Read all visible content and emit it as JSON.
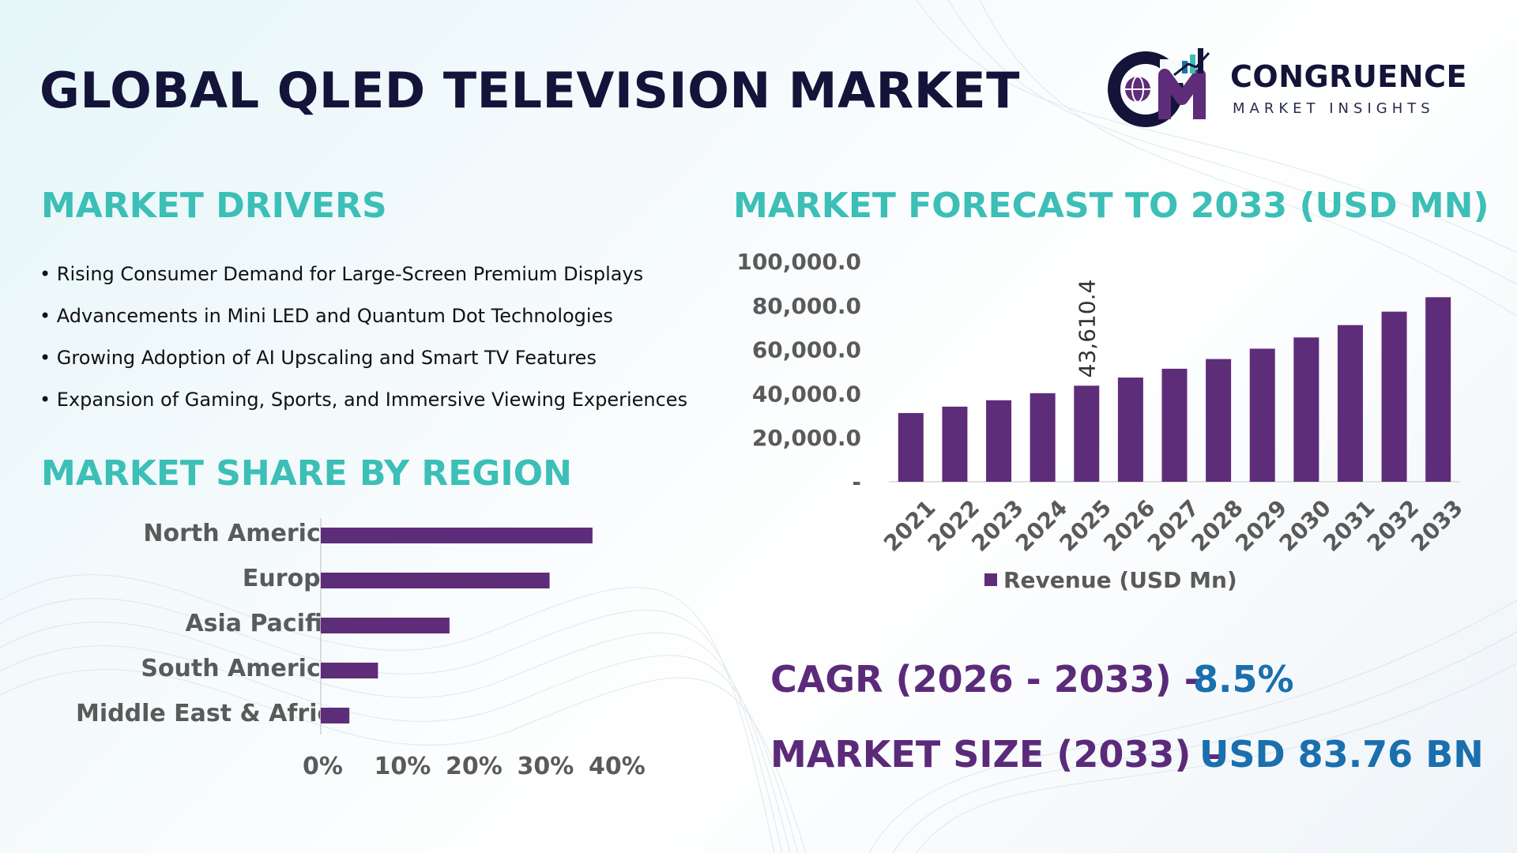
{
  "title": "GLOBAL QLED TELEVISION MARKET",
  "logo": {
    "name": "CONGRUENCE",
    "tagline": "MARKET INSIGHTS",
    "icon": "cm-globe-logo-icon"
  },
  "drivers": {
    "heading": "MARKET DRIVERS",
    "items": [
      "Rising Consumer Demand for Large-Screen Premium Displays",
      "Advancements in Mini LED and Quantum Dot Technologies",
      "Growing Adoption of AI Upscaling and Smart TV Features",
      "Expansion of Gaming, Sports, and Immersive Viewing Experiences"
    ]
  },
  "region": {
    "heading": "MARKET SHARE BY REGION"
  },
  "forecast": {
    "heading": "MARKET FORECAST TO 2033 (USD MN)"
  },
  "stats": {
    "cagr_label": "CAGR (2026 - 2033) -",
    "cagr_value": "8.5%",
    "size_label": "MARKET SIZE (2033) –",
    "size_value": "USD 83.76 BN"
  },
  "colors": {
    "bar": "#5e2d79",
    "heading": "#3bbfb6",
    "title": "#14143a",
    "stat_label": "#5b2a7a",
    "stat_value": "#1a6fae"
  },
  "chart_data": [
    {
      "type": "bar",
      "orientation": "horizontal",
      "categories": [
        "North America",
        "Europe",
        "Asia Pacific",
        "South America",
        "Middle East & Africa"
      ],
      "values": [
        38,
        32,
        18,
        8,
        4
      ],
      "x_ticks": [
        "0%",
        "10%",
        "20%",
        "30%",
        "40%"
      ],
      "xlim": [
        0,
        40
      ],
      "grid": false
    },
    {
      "type": "bar",
      "categories": [
        "2021",
        "2022",
        "2023",
        "2024",
        "2025",
        "2026",
        "2027",
        "2028",
        "2029",
        "2030",
        "2031",
        "2032",
        "2033"
      ],
      "series": [
        {
          "name": "Revenue (USD Mn)",
          "values": [
            31200,
            34100,
            37000,
            40200,
            43610.4,
            47300,
            51300,
            55700,
            60400,
            65500,
            71100,
            77200,
            83760
          ]
        }
      ],
      "data_labels": [
        {
          "category": "2025",
          "text": "43,610.4"
        }
      ],
      "y_ticks": [
        "-",
        "20,000.0",
        "40,000.0",
        "60,000.0",
        "80,000.0",
        "100,000.0"
      ],
      "ylim": [
        0,
        100000
      ],
      "legend_position": "bottom",
      "grid": false
    }
  ]
}
